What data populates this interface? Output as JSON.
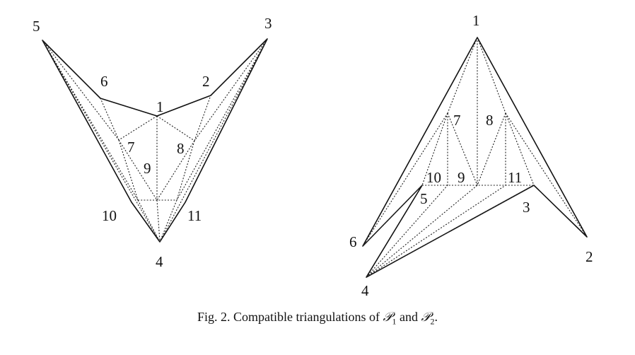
{
  "left_polygon": {
    "labels": [
      "1",
      "2",
      "3",
      "4",
      "5",
      "6",
      "7",
      "8",
      "9",
      "10",
      "11"
    ]
  },
  "right_polygon": {
    "labels": [
      "1",
      "2",
      "3",
      "4",
      "5",
      "6",
      "7",
      "8",
      "9",
      "10",
      "11"
    ]
  },
  "caption": {
    "prefix": "Fig. 2.  Compatible triangulations of ",
    "p1": "𝒫",
    "p1_sub": "1",
    "mid": " and ",
    "p2": "𝒫",
    "p2_sub": "2",
    "suffix": "."
  }
}
